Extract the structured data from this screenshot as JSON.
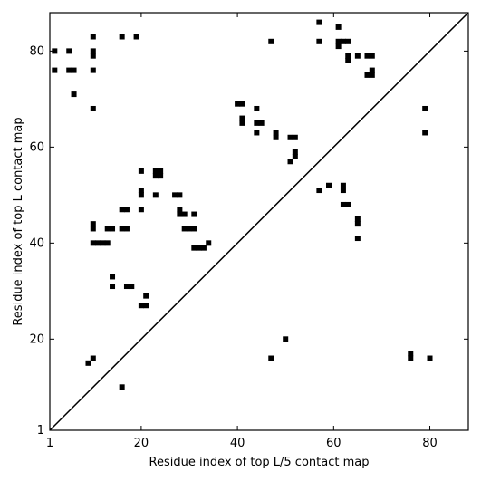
{
  "chart_data": {
    "type": "heatmap",
    "title": "",
    "xlabel": "Residue index of top L/5 contact map",
    "ylabel": "Residue index of top L contact map",
    "xlim": [
      1,
      88
    ],
    "ylim": [
      1,
      88
    ],
    "xticks": [
      1,
      20,
      40,
      60,
      80
    ],
    "yticks": [
      1,
      20,
      40,
      60,
      80
    ],
    "tick_labels": [
      "1",
      "20",
      "40",
      "60",
      "80"
    ],
    "diagonal": true,
    "cell_color": "#000000",
    "upper_left_contacts": [
      [
        2,
        80
      ],
      [
        2,
        76
      ],
      [
        5,
        80
      ],
      [
        5,
        76
      ],
      [
        6,
        76
      ],
      [
        6,
        71
      ],
      [
        10,
        83
      ],
      [
        10,
        80
      ],
      [
        10,
        79
      ],
      [
        10,
        76
      ],
      [
        10,
        68
      ],
      [
        16,
        83
      ],
      [
        19,
        83
      ],
      [
        10,
        44
      ],
      [
        10,
        43
      ],
      [
        10,
        40
      ],
      [
        11,
        40
      ],
      [
        12,
        40
      ],
      [
        13,
        40
      ],
      [
        13,
        43
      ],
      [
        14,
        43
      ],
      [
        16,
        43
      ],
      [
        17,
        43
      ],
      [
        16,
        47
      ],
      [
        17,
        47
      ],
      [
        14,
        33
      ],
      [
        14,
        31
      ],
      [
        17,
        31
      ],
      [
        18,
        31
      ],
      [
        20,
        55
      ],
      [
        20,
        51
      ],
      [
        20,
        50
      ],
      [
        20,
        47
      ],
      [
        20,
        27
      ],
      [
        21,
        27
      ],
      [
        21,
        29
      ],
      [
        23,
        55
      ],
      [
        23,
        54
      ],
      [
        24,
        55
      ],
      [
        24,
        54
      ],
      [
        23,
        50
      ],
      [
        27,
        50
      ],
      [
        28,
        50
      ],
      [
        28,
        47
      ],
      [
        28,
        46
      ],
      [
        29,
        46
      ],
      [
        31,
        46
      ],
      [
        29,
        43
      ],
      [
        30,
        43
      ],
      [
        31,
        43
      ],
      [
        31,
        39
      ],
      [
        32,
        39
      ],
      [
        33,
        39
      ],
      [
        34,
        40
      ],
      [
        40,
        69
      ],
      [
        41,
        69
      ],
      [
        41,
        66
      ],
      [
        41,
        65
      ],
      [
        44,
        68
      ],
      [
        44,
        65
      ],
      [
        45,
        65
      ],
      [
        44,
        63
      ],
      [
        47,
        82
      ],
      [
        48,
        63
      ],
      [
        48,
        62
      ],
      [
        51,
        62
      ],
      [
        52,
        62
      ],
      [
        52,
        59
      ],
      [
        52,
        58
      ],
      [
        51,
        57
      ],
      [
        57,
        86
      ],
      [
        57,
        82
      ],
      [
        61,
        85
      ],
      [
        61,
        82
      ],
      [
        62,
        82
      ],
      [
        63,
        82
      ],
      [
        61,
        81
      ],
      [
        63,
        79
      ],
      [
        63,
        78
      ],
      [
        65,
        79
      ],
      [
        67,
        79
      ],
      [
        68,
        79
      ],
      [
        68,
        76
      ],
      [
        67,
        75
      ],
      [
        68,
        75
      ]
    ],
    "lower_right_contacts": [
      [
        57,
        51
      ],
      [
        59,
        52
      ],
      [
        62,
        52
      ],
      [
        62,
        51
      ],
      [
        62,
        48
      ],
      [
        63,
        48
      ],
      [
        65,
        45
      ],
      [
        65,
        44
      ],
      [
        65,
        41
      ],
      [
        79,
        68
      ],
      [
        79,
        63
      ],
      [
        9,
        15
      ],
      [
        10,
        16
      ],
      [
        16,
        10
      ],
      [
        47,
        16
      ],
      [
        50,
        20
      ],
      [
        76,
        17
      ],
      [
        76,
        16
      ],
      [
        80,
        16
      ]
    ]
  }
}
